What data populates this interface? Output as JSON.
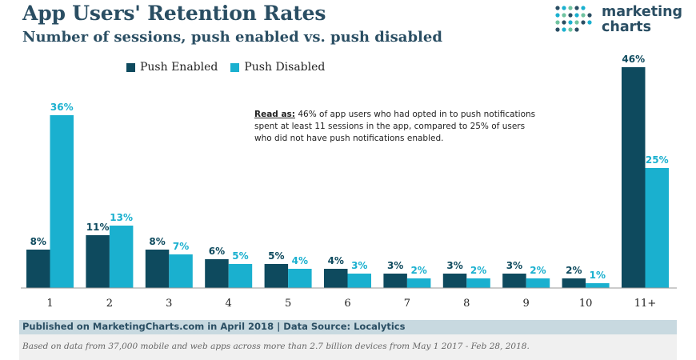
{
  "colors": {
    "push_enabled": "#0e4a5e",
    "push_disabled": "#1ab0cf",
    "title": "#2a4e63"
  },
  "header": {
    "title": "App Users' Retention Rates",
    "subtitle": "Number of sessions, push enabled vs. push disabled"
  },
  "logo": {
    "line1": "marketing",
    "line2": "charts",
    "icon": "dot-grid-icon"
  },
  "legend": {
    "enabled_label": "Push Enabled",
    "disabled_label": "Push Disabled"
  },
  "note": {
    "label": "Read as:",
    "text": "46% of app users who had opted in to push notifications spent at least 11 sessions in the app, compared to 25% of users who did not have push notifications enabled."
  },
  "chart_data": {
    "type": "bar",
    "categories": [
      "1",
      "2",
      "3",
      "4",
      "5",
      "6",
      "7",
      "8",
      "9",
      "10",
      "11+"
    ],
    "series": [
      {
        "name": "Push Enabled",
        "values": [
          8,
          11,
          8,
          6,
          5,
          4,
          3,
          3,
          3,
          2,
          46
        ]
      },
      {
        "name": "Push Disabled",
        "values": [
          36,
          13,
          7,
          5,
          4,
          3,
          2,
          2,
          2,
          1,
          25
        ]
      }
    ],
    "value_suffix": "%",
    "legend_position": "top-left",
    "grid": false
  },
  "footer": {
    "published": "Published on MarketingCharts.com in April 2018 | Data Source: Localytics",
    "caption": "Based on data from 37,000 mobile and web apps across more than 2.7 billion devices from May 1 2017 - Feb 28, 2018."
  }
}
